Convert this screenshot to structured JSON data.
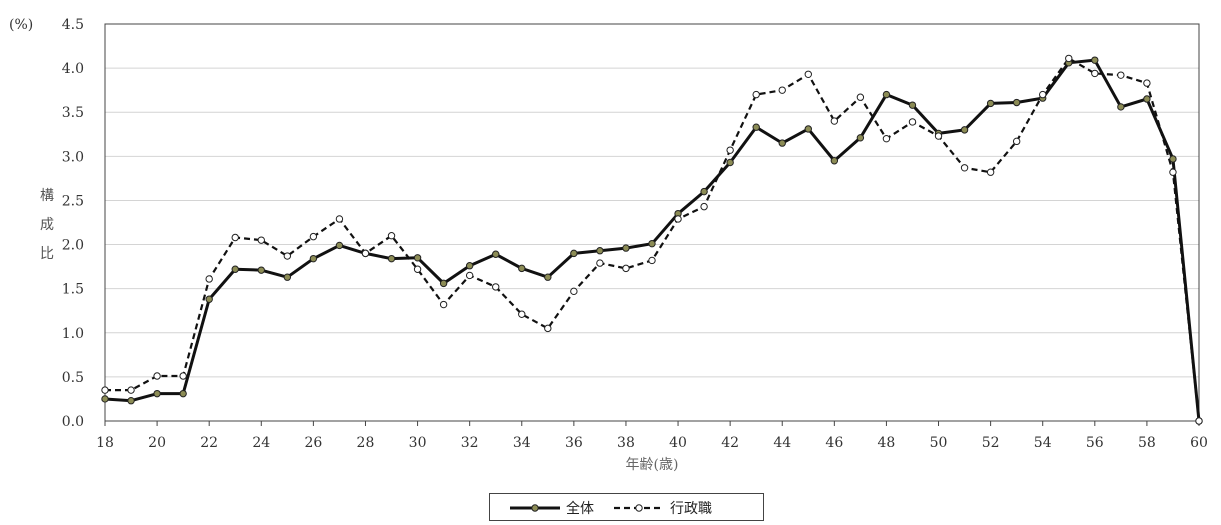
{
  "chart_data": {
    "type": "line",
    "unit_label": "(%)",
    "ylabel": "構成比",
    "xlabel": "年齢(歳)",
    "x": [
      18,
      19,
      20,
      21,
      22,
      23,
      24,
      25,
      26,
      27,
      28,
      29,
      30,
      31,
      32,
      33,
      34,
      35,
      36,
      37,
      38,
      39,
      40,
      41,
      42,
      43,
      44,
      45,
      46,
      47,
      48,
      49,
      50,
      51,
      52,
      53,
      54,
      55,
      56,
      57,
      58,
      59,
      60
    ],
    "xlim": [
      18,
      60
    ],
    "ylim": [
      0,
      4.5
    ],
    "yticks": [
      "0.0",
      "0.5",
      "1.0",
      "1.5",
      "2.0",
      "2.5",
      "3.0",
      "3.5",
      "4.0",
      "4.5"
    ],
    "xticks": [
      "18",
      "20",
      "22",
      "24",
      "26",
      "28",
      "30",
      "32",
      "34",
      "36",
      "38",
      "40",
      "42",
      "44",
      "46",
      "48",
      "50",
      "52",
      "54",
      "56",
      "58",
      "60"
    ],
    "grid": "horizontal",
    "legend_position": "bottom",
    "series": [
      {
        "name": "全体",
        "style": "solid",
        "line_color": "#111111",
        "marker_color": "#8c8c55",
        "values": [
          0.25,
          0.23,
          0.31,
          0.31,
          1.38,
          1.72,
          1.71,
          1.63,
          1.84,
          1.99,
          1.9,
          1.84,
          1.85,
          1.56,
          1.76,
          1.89,
          1.73,
          1.63,
          1.9,
          1.93,
          1.96,
          2.01,
          2.35,
          2.6,
          2.93,
          3.33,
          3.15,
          3.31,
          2.95,
          3.21,
          3.7,
          3.58,
          3.26,
          3.3,
          3.6,
          3.61,
          3.66,
          4.06,
          4.09,
          3.56,
          3.65,
          2.97,
          0.0
        ]
      },
      {
        "name": "行政職",
        "style": "dashed",
        "line_color": "#111111",
        "marker_color": "#ffffff",
        "values": [
          0.35,
          0.35,
          0.51,
          0.51,
          1.61,
          2.08,
          2.05,
          1.87,
          2.09,
          2.29,
          1.9,
          2.1,
          1.72,
          1.32,
          1.65,
          1.52,
          1.21,
          1.05,
          1.47,
          1.79,
          1.73,
          1.82,
          2.29,
          2.43,
          3.07,
          3.7,
          3.75,
          3.93,
          3.4,
          3.67,
          3.2,
          3.39,
          3.23,
          2.87,
          2.82,
          3.17,
          3.7,
          4.11,
          3.94,
          3.92,
          3.83,
          2.82,
          0.0
        ]
      }
    ]
  }
}
